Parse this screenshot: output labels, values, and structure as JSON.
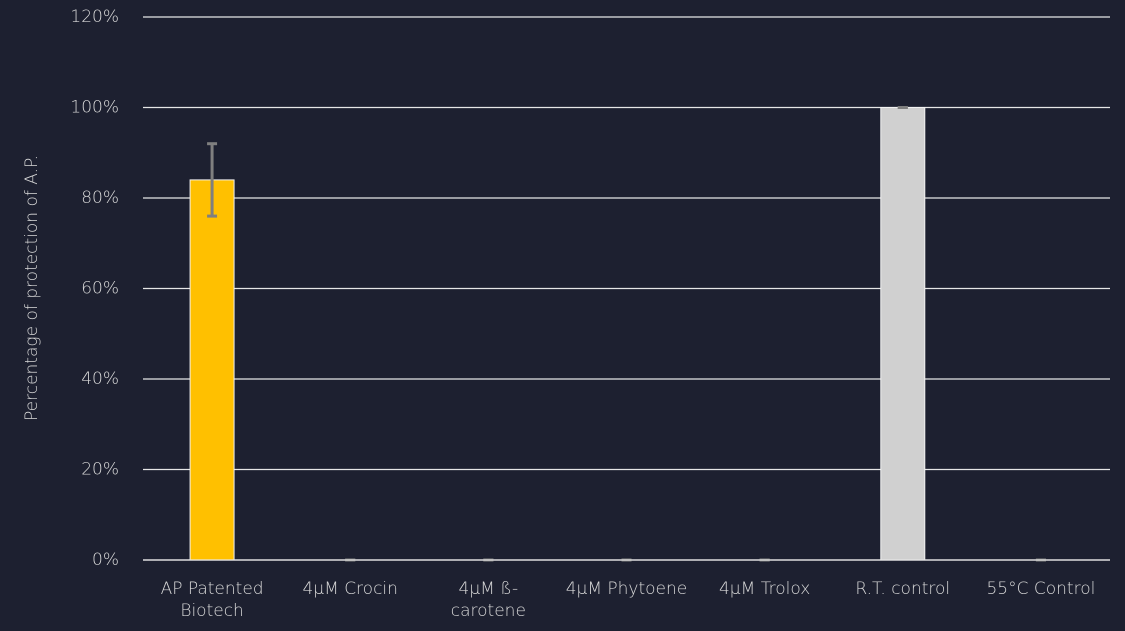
{
  "chart_data": {
    "type": "bar",
    "y_label": "Percentage of protection of A.P.",
    "categories": [
      "AP Patented Biotech",
      "4µM Crocin",
      "4µM ß-carotene",
      "4µM Phytoene",
      "4µM Trolox",
      "R.T. control",
      "55°C Control"
    ],
    "values": [
      84,
      0,
      0,
      0,
      0,
      100,
      0
    ],
    "errors": [
      8,
      0,
      0,
      0,
      0,
      0,
      0
    ],
    "colors": [
      "#ffc000",
      "#d0d0d0",
      "#d0d0d0",
      "#d0d0d0",
      "#d0d0d0",
      "#d0d0d0",
      "#d0d0d0"
    ],
    "error_color": "#7f7f7f",
    "ylim": [
      0,
      120
    ],
    "yticks": [
      {
        "value": 0,
        "label": "0%"
      },
      {
        "value": 20,
        "label": "20%"
      },
      {
        "value": 40,
        "label": "40%"
      },
      {
        "value": 60,
        "label": "60%"
      },
      {
        "value": 80,
        "label": "80%"
      },
      {
        "value": 100,
        "label": "100%"
      },
      {
        "value": 120,
        "label": "120%"
      }
    ],
    "grid": true
  }
}
